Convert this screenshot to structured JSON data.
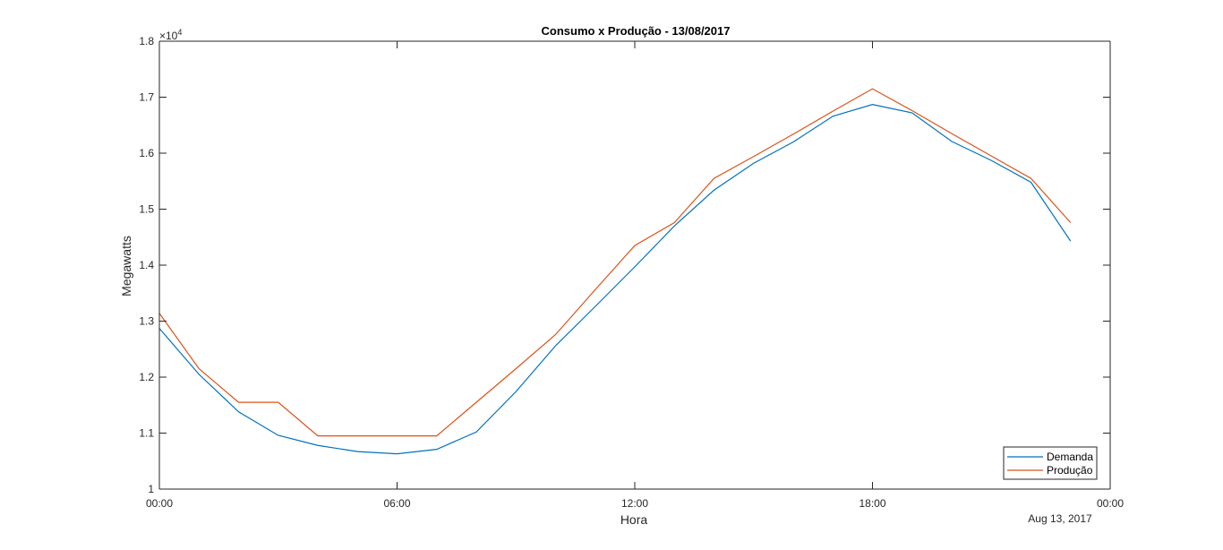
{
  "chart_data": {
    "type": "line",
    "title": "Consumo x Produção - 13/08/2017",
    "xlabel": "Hora",
    "ylabel": "Megawatts",
    "x_tick_labels": [
      "00:00",
      "06:00",
      "12:00",
      "18:00",
      "00:00"
    ],
    "x_date_label": "Aug 13, 2017",
    "y_multiplier_label": "×10",
    "y_multiplier_exp": "4",
    "y_tick_labels": [
      "1",
      "1.1",
      "1.2",
      "1.3",
      "1.4",
      "1.5",
      "1.6",
      "1.7",
      "1.8"
    ],
    "ylim": [
      10000,
      18000
    ],
    "xlim": [
      "2017-08-13 00:00",
      "2017-08-14 00:00"
    ],
    "grid": false,
    "legend_position": "bottom-right",
    "x": [
      "00:00",
      "01:00",
      "02:00",
      "03:00",
      "04:00",
      "05:00",
      "06:00",
      "07:00",
      "08:00",
      "09:00",
      "10:00",
      "11:00",
      "12:00",
      "13:00",
      "14:00",
      "15:00",
      "16:00",
      "17:00",
      "18:00",
      "19:00",
      "20:00",
      "21:00",
      "22:00",
      "23:00"
    ],
    "series": [
      {
        "name": "Demanda",
        "color": "#0072BD",
        "values": [
          12870,
          12050,
          11380,
          10960,
          10780,
          10670,
          10630,
          10710,
          11020,
          11740,
          12560,
          13260,
          13970,
          14700,
          15340,
          15820,
          16200,
          16660,
          16870,
          16720,
          16210,
          15870,
          15480,
          14430
        ]
      },
      {
        "name": "Produção",
        "color": "#D95319",
        "values": [
          13140,
          12150,
          11550,
          11550,
          10950,
          10950,
          10950,
          10950,
          11550,
          12150,
          12760,
          13560,
          14350,
          14760,
          15550,
          15940,
          16340,
          16750,
          17150,
          16760,
          16350,
          15950,
          15550,
          14760
        ]
      }
    ]
  }
}
